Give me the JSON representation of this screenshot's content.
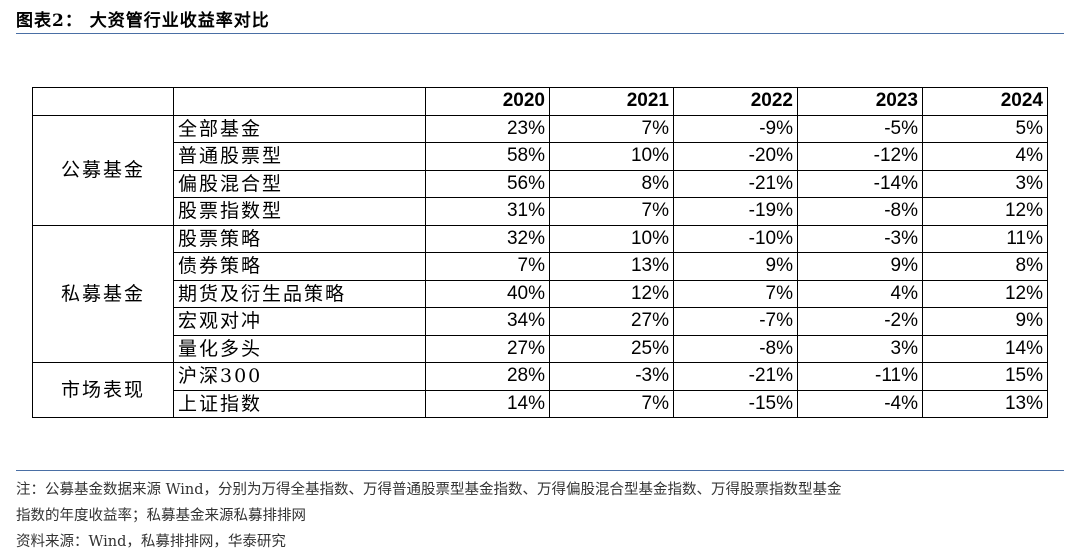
{
  "title": "图表2： 大资管行业收益率对比",
  "table": {
    "years": [
      "2020",
      "2021",
      "2022",
      "2023",
      "2024"
    ],
    "groups": [
      {
        "name": "公募基金",
        "rows": [
          {
            "label": "全部基金",
            "values": [
              "23%",
              "7%",
              "-9%",
              "-5%",
              "5%"
            ]
          },
          {
            "label": "普通股票型",
            "values": [
              "58%",
              "10%",
              "-20%",
              "-12%",
              "4%"
            ]
          },
          {
            "label": "偏股混合型",
            "values": [
              "56%",
              "8%",
              "-21%",
              "-14%",
              "3%"
            ]
          },
          {
            "label": "股票指数型",
            "values": [
              "31%",
              "7%",
              "-19%",
              "-8%",
              "12%"
            ]
          }
        ]
      },
      {
        "name": "私募基金",
        "rows": [
          {
            "label": "股票策略",
            "values": [
              "32%",
              "10%",
              "-10%",
              "-3%",
              "11%"
            ]
          },
          {
            "label": "债券策略",
            "values": [
              "7%",
              "13%",
              "9%",
              "9%",
              "8%"
            ]
          },
          {
            "label": "期货及衍生品策略",
            "values": [
              "40%",
              "12%",
              "7%",
              "4%",
              "12%"
            ]
          },
          {
            "label": "宏观对冲",
            "values": [
              "34%",
              "27%",
              "-7%",
              "-2%",
              "9%"
            ]
          },
          {
            "label": "量化多头",
            "values": [
              "27%",
              "25%",
              "-8%",
              "3%",
              "14%"
            ]
          }
        ]
      },
      {
        "name": "市场表现",
        "rows": [
          {
            "label": "沪深300",
            "values": [
              "28%",
              "-3%",
              "-21%",
              "-11%",
              "15%"
            ]
          },
          {
            "label": "上证指数",
            "values": [
              "14%",
              "7%",
              "-15%",
              "-4%",
              "13%"
            ]
          }
        ]
      }
    ]
  },
  "notes": {
    "line1": "注：公募基金数据来源 Wind，分别为万得全基指数、万得普通股票型基金指数、万得偏股混合型基金指数、万得股票指数型基金",
    "line2": "指数的年度收益率；私募基金来源私募排排网",
    "source": "资料来源：Wind，私募排排网，华泰研究"
  }
}
